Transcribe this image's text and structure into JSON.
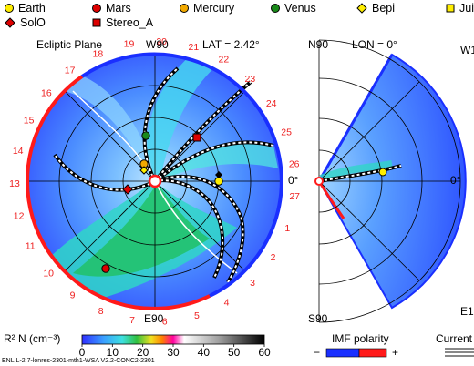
{
  "legend": {
    "earth": "Earth",
    "mars": "Mars",
    "mercury": "Mercury",
    "venus": "Venus",
    "bepi": "Bepi",
    "juice": "Jui",
    "solo": "SolO",
    "stereo_a": "Stereo_A"
  },
  "ecliptic": {
    "title": "Ecliptic Plane",
    "top_label": "W90",
    "lat_label": "LAT = 2.42°",
    "right_label": "0°",
    "bottom_label": "E90",
    "ticks": [
      "1",
      "2",
      "3",
      "4",
      "5",
      "6",
      "7",
      "8",
      "9",
      "10",
      "11",
      "12",
      "13",
      "14",
      "15",
      "16",
      "17",
      "18",
      "19",
      "20",
      "21",
      "22",
      "23",
      "24",
      "25",
      "26",
      "27"
    ]
  },
  "meridional": {
    "top_label": "N90",
    "lon_label": "LON = 0°",
    "right_label": "0°",
    "bottom_label": "S90",
    "edge_top": "W1",
    "edge_bottom": "E1"
  },
  "colorbar": {
    "title": "R² N (cm⁻³)",
    "ticks": [
      "0",
      "10",
      "20",
      "30",
      "40",
      "50",
      "60"
    ]
  },
  "imf": {
    "title": "IMF polarity",
    "minus": "−",
    "plus": "+"
  },
  "current_label": "Current",
  "footer": "ENLIL-2.7-lonres-2301-mth1-WSA V2.2-CONC2-2301",
  "colors": {
    "earth": "#ffee00",
    "mars": "#dd0000",
    "mercury": "#f2a900",
    "venus": "#1a8a1a",
    "bepi": "#ffee00",
    "solo": "#dd0000",
    "stereo_a": "#dd0000",
    "imf_neg": "#1a2fff",
    "imf_pos": "#ff1a1a",
    "tick_red": "#ee2020"
  }
}
